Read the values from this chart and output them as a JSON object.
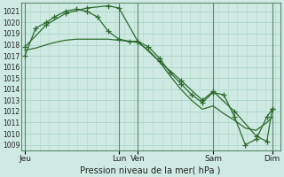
{
  "bg_color": "#ceeae2",
  "grid_color": "#b0d8cc",
  "line_color": "#2d6a2d",
  "marker_color": "#2d6a2d",
  "xlabel": "Pression niveau de la mer( hPa )",
  "ylim": [
    1008.5,
    1021.8
  ],
  "yticks": [
    1009,
    1010,
    1011,
    1012,
    1013,
    1014,
    1015,
    1016,
    1017,
    1018,
    1019,
    1020,
    1021
  ],
  "xlim": [
    -0.15,
    9.5
  ],
  "xtick_positions": [
    0,
    3.5,
    4.2,
    7.0,
    9.2
  ],
  "xtick_labels": [
    "Jeu",
    "Lun",
    "Ven",
    "Sam",
    "Dim"
  ],
  "vlines": [
    0,
    3.5,
    4.2,
    7.0,
    9.2
  ],
  "line1_x": [
    0.0,
    0.4,
    0.8,
    1.1,
    1.5,
    1.9,
    2.3,
    2.7,
    3.1,
    3.5,
    3.9,
    4.2,
    4.6,
    5.0,
    5.4,
    5.8,
    6.2,
    6.6,
    7.0,
    7.4,
    7.8,
    8.2,
    8.6,
    9.0,
    9.2
  ],
  "line1_y": [
    1017.0,
    1019.5,
    1020.0,
    1020.5,
    1021.0,
    1021.2,
    1021.0,
    1020.5,
    1019.2,
    1018.5,
    1018.3,
    1018.3,
    1017.8,
    1016.8,
    1015.5,
    1014.5,
    1013.5,
    1012.8,
    1013.7,
    1013.5,
    1011.5,
    1009.0,
    1009.5,
    1011.5,
    1012.2
  ],
  "line2_x": [
    0.0,
    0.4,
    0.8,
    1.1,
    1.5,
    1.9,
    2.3,
    2.7,
    3.1,
    3.5,
    3.9,
    4.2,
    4.6,
    5.0,
    5.4,
    5.8,
    6.2,
    6.6,
    7.0,
    7.4,
    7.8,
    8.2,
    8.6,
    9.0,
    9.2
  ],
  "line2_y": [
    1017.5,
    1017.7,
    1018.0,
    1018.2,
    1018.4,
    1018.5,
    1018.5,
    1018.5,
    1018.5,
    1018.4,
    1018.3,
    1018.2,
    1017.5,
    1016.5,
    1015.2,
    1014.0,
    1013.0,
    1012.2,
    1012.5,
    1011.8,
    1011.2,
    1010.5,
    1010.3,
    1011.0,
    1011.5
  ],
  "line3_x": [
    0.0,
    0.8,
    1.5,
    2.3,
    3.1,
    3.5,
    4.2,
    5.0,
    5.8,
    6.6,
    7.0,
    7.8,
    8.6,
    9.0,
    9.2
  ],
  "line3_y": [
    1017.8,
    1019.8,
    1020.8,
    1021.3,
    1021.5,
    1021.3,
    1018.3,
    1016.5,
    1014.8,
    1013.0,
    1013.8,
    1012.0,
    1009.8,
    1009.3,
    1012.2
  ]
}
